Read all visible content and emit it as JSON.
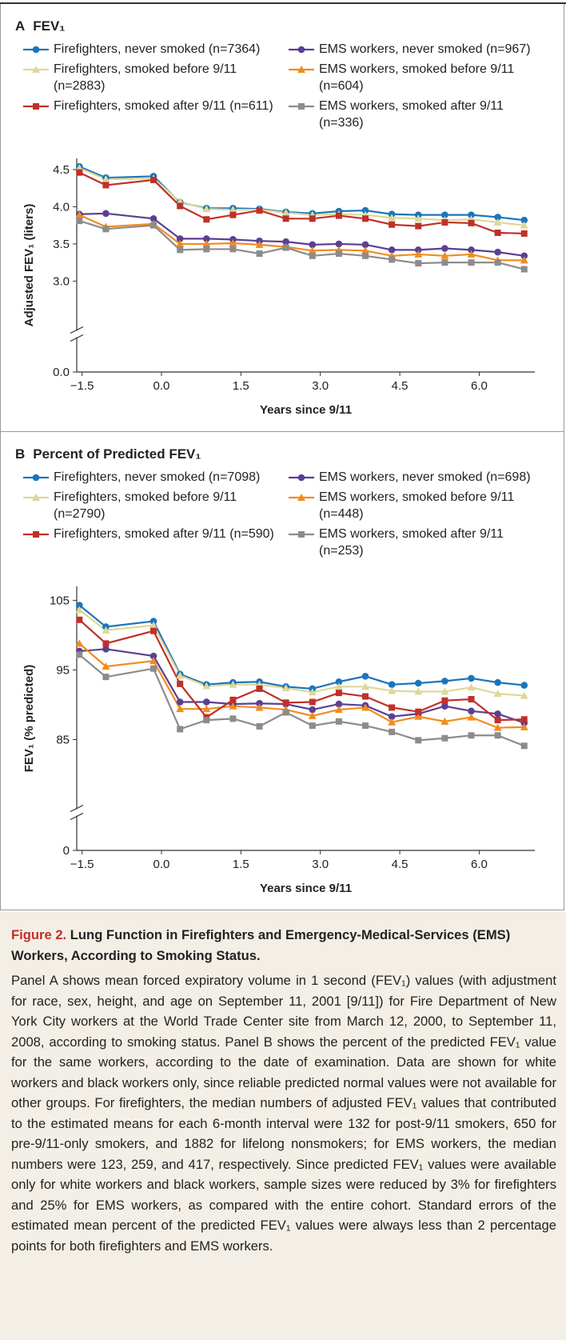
{
  "chart_data": [
    {
      "type": "line",
      "panel": "A",
      "title": "FEV₁",
      "xlabel": "Years since 9/11",
      "ylabel": "Adjusted FEV₁ (liters)",
      "x": [
        -1.55,
        -1.05,
        -0.15,
        0.35,
        0.85,
        1.35,
        1.85,
        2.35,
        2.85,
        3.35,
        3.85,
        4.35,
        4.85,
        5.35,
        5.85,
        6.35,
        6.85
      ],
      "xlim": [
        -1.6,
        7.05
      ],
      "xticks": [
        {
          "value": -1.5,
          "label": "−1.5"
        },
        {
          "value": 0,
          "label": "0.0"
        },
        1.5,
        {
          "value": 3,
          "label": "3.0"
        },
        4.5,
        {
          "value": 6,
          "label": "6.0"
        }
      ],
      "ylim": [
        2.8,
        4.65
      ],
      "yticks": [
        {
          "value": 0,
          "label": "0.0"
        },
        {
          "value": 3,
          "label": "3.0"
        },
        3.5,
        {
          "value": 4,
          "label": "4.0"
        },
        4.5
      ],
      "axis_break": true,
      "series": [
        {
          "name": "Firefighters, never smoked (n=7364)",
          "color": "#1b75bb",
          "marker": "circle",
          "values": [
            4.54,
            4.39,
            4.41,
            4.06,
            3.98,
            3.98,
            3.97,
            3.93,
            3.91,
            3.94,
            3.95,
            3.9,
            3.89,
            3.89,
            3.89,
            3.86,
            3.82
          ]
        },
        {
          "name": "EMS workers, never smoked (n=967)",
          "color": "#5b3f93",
          "marker": "circle",
          "values": [
            3.9,
            3.91,
            3.84,
            3.57,
            3.57,
            3.56,
            3.54,
            3.53,
            3.49,
            3.5,
            3.49,
            3.42,
            3.42,
            3.44,
            3.42,
            3.39,
            3.34
          ]
        },
        {
          "name": "Firefighters, smoked before 9/11 (n=2883)",
          "color": "#ddd898",
          "marker": "triangle",
          "values": [
            4.52,
            4.37,
            4.38,
            4.07,
            3.97,
            3.96,
            3.96,
            3.92,
            3.89,
            3.9,
            3.89,
            3.85,
            3.84,
            3.82,
            3.83,
            3.79,
            3.75
          ]
        },
        {
          "name": "EMS workers, smoked before 9/11 (n=604)",
          "color": "#f08c1e",
          "marker": "triangle",
          "values": [
            3.89,
            3.73,
            3.77,
            3.5,
            3.5,
            3.51,
            3.49,
            3.46,
            3.41,
            3.42,
            3.41,
            3.34,
            3.36,
            3.34,
            3.36,
            3.28,
            3.28
          ]
        },
        {
          "name": "Firefighters, smoked after 9/11 (n=611)",
          "color": "#c0302a",
          "marker": "square",
          "values": [
            4.46,
            4.29,
            4.36,
            4.01,
            3.83,
            3.89,
            3.95,
            3.84,
            3.84,
            3.88,
            3.84,
            3.76,
            3.74,
            3.79,
            3.78,
            3.65,
            3.64
          ]
        },
        {
          "name": "EMS workers, smoked after 9/11 (n=336)",
          "color": "#8c8c8c",
          "marker": "square",
          "values": [
            3.81,
            3.7,
            3.75,
            3.42,
            3.43,
            3.43,
            3.37,
            3.45,
            3.34,
            3.37,
            3.34,
            3.29,
            3.24,
            3.25,
            3.25,
            3.25,
            3.16
          ]
        }
      ]
    },
    {
      "type": "line",
      "panel": "B",
      "title": "Percent of Predicted FEV₁",
      "xlabel": "Years since 9/11",
      "ylabel": "FEV₁ (% predicted)",
      "x": [
        -1.55,
        -1.05,
        -0.15,
        0.35,
        0.85,
        1.35,
        1.85,
        2.35,
        2.85,
        3.35,
        3.85,
        4.35,
        4.85,
        5.35,
        5.85,
        6.35,
        6.85
      ],
      "xlim": [
        -1.6,
        7.05
      ],
      "xticks": [
        {
          "value": -1.5,
          "label": "−1.5"
        },
        {
          "value": 0,
          "label": "0.0"
        },
        1.5,
        {
          "value": 3,
          "label": "3.0"
        },
        4.5,
        {
          "value": 6,
          "label": "6.0"
        }
      ],
      "ylim": [
        80,
        107
      ],
      "yticks": [
        0,
        85,
        95,
        105
      ],
      "axis_break": true,
      "series": [
        {
          "name": "Firefighters, never smoked (n=7098)",
          "color": "#1b75bb",
          "marker": "circle",
          "values": [
            104.3,
            101.2,
            102.0,
            94.4,
            92.9,
            93.2,
            93.3,
            92.6,
            92.3,
            93.3,
            94.1,
            92.9,
            93.1,
            93.4,
            93.8,
            93.2,
            92.8
          ]
        },
        {
          "name": "EMS workers, never smoked (n=698)",
          "color": "#5b3f93",
          "marker": "circle",
          "values": [
            97.7,
            98.0,
            97.0,
            90.4,
            90.4,
            90.1,
            90.2,
            90.1,
            89.3,
            90.1,
            89.9,
            88.3,
            88.7,
            89.8,
            89.1,
            88.7,
            87.4
          ]
        },
        {
          "name": "Firefighters, smoked before 9/11 (n=2790)",
          "color": "#ddd898",
          "marker": "triangle",
          "values": [
            103.6,
            100.7,
            101.4,
            94.2,
            92.7,
            92.9,
            92.9,
            92.4,
            91.8,
            92.6,
            92.6,
            92.0,
            91.9,
            91.9,
            92.5,
            91.6,
            91.3
          ]
        },
        {
          "name": "EMS workers, smoked before 9/11 (n=448)",
          "color": "#f08c1e",
          "marker": "triangle",
          "values": [
            98.8,
            95.5,
            96.3,
            89.4,
            89.4,
            89.8,
            89.6,
            89.3,
            88.4,
            89.3,
            89.6,
            87.5,
            88.3,
            87.6,
            88.2,
            86.7,
            86.8
          ]
        },
        {
          "name": "Firefighters, smoked after 9/11 (n=590)",
          "color": "#c0302a",
          "marker": "square",
          "values": [
            102.2,
            98.8,
            100.6,
            93.0,
            88.2,
            90.7,
            92.3,
            90.3,
            90.4,
            91.7,
            91.2,
            89.6,
            89.0,
            90.6,
            90.8,
            87.8,
            87.9
          ]
        },
        {
          "name": "EMS workers, smoked after 9/11 (n=253)",
          "color": "#8c8c8c",
          "marker": "square",
          "values": [
            97.2,
            94.0,
            95.2,
            86.5,
            87.8,
            88.0,
            86.9,
            88.9,
            87.0,
            87.6,
            87.0,
            86.1,
            84.9,
            85.2,
            85.6,
            85.6,
            84.1
          ]
        }
      ]
    }
  ],
  "caption": {
    "label": "Figure 2.",
    "title": "Lung Function in Firefighters and Emergency-Medical-Services (EMS) Workers, According to Smoking Status.",
    "body": "Panel A shows mean forced expiratory volume in 1 second (FEV₁) values (with adjustment for race, sex, height, and age on September 11, 2001 [9/11]) for Fire Department of New York City workers at the World Trade Center site from March 12, 2000, to September 11, 2008, according to smoking status. Panel B shows the percent of the predicted FEV₁ value for the same workers, according to the date of examination. Data are shown for white workers and black workers only, since reliable predicted normal values were not available for other groups. For firefighters, the median numbers of adjusted FEV₁ values that contributed to the estimated means for each 6-month interval were 132 for post-9/11 smokers, 650 for pre-9/11-only smokers, and 1882 for lifelong nonsmokers; for EMS workers, the median numbers were 123, 259, and 417, respectively. Since predicted FEV₁ values were available only for white workers and black workers, sample sizes were reduced by 3% for firefighters and 25% for EMS workers, as compared with the entire cohort. Standard errors of the estimated mean percent of the predicted FEV₁ values were always less than 2 percentage points for both firefighters and EMS workers."
  }
}
